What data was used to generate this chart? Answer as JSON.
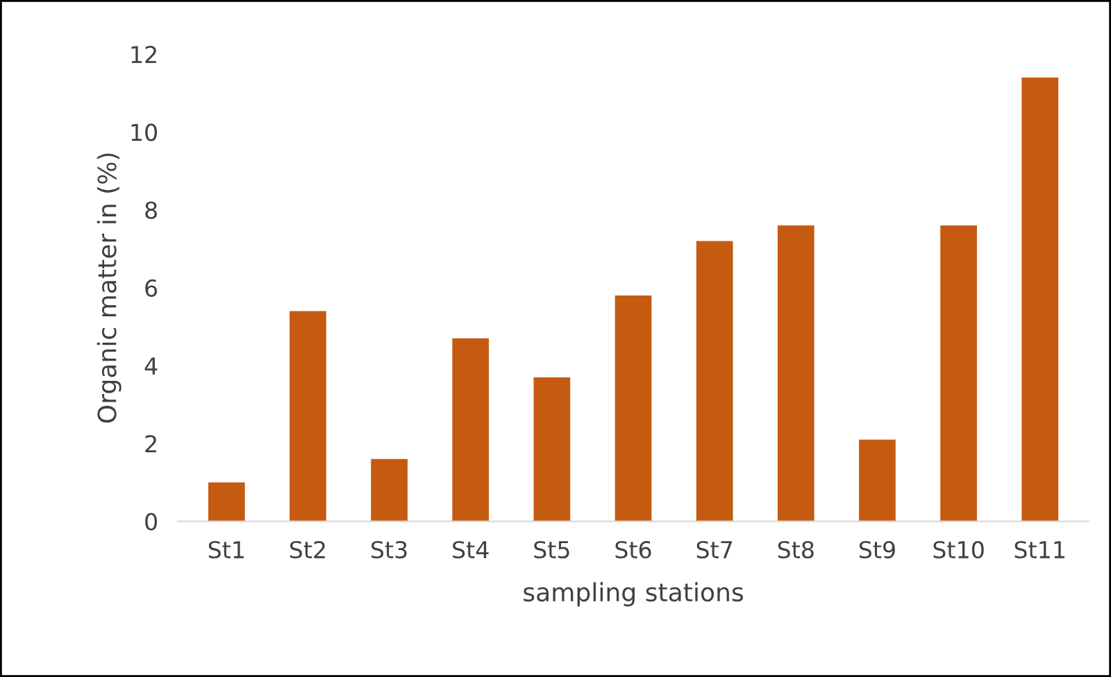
{
  "chart_data": {
    "type": "bar",
    "xlabel": "sampling stations",
    "ylabel": "Organic matter in (%)",
    "categories": [
      "St1",
      "St2",
      "St3",
      "St4",
      "St5",
      "St6",
      "St7",
      "St8",
      "St9",
      "St10",
      "St11"
    ],
    "values": [
      1.0,
      5.4,
      1.6,
      4.7,
      3.7,
      5.8,
      7.2,
      7.6,
      2.1,
      7.6,
      11.4
    ],
    "color": "#c55a11",
    "ylim": [
      0,
      12
    ],
    "yticks": [
      0,
      2,
      4,
      6,
      8,
      10,
      12
    ],
    "grid": false,
    "legend": false
  }
}
